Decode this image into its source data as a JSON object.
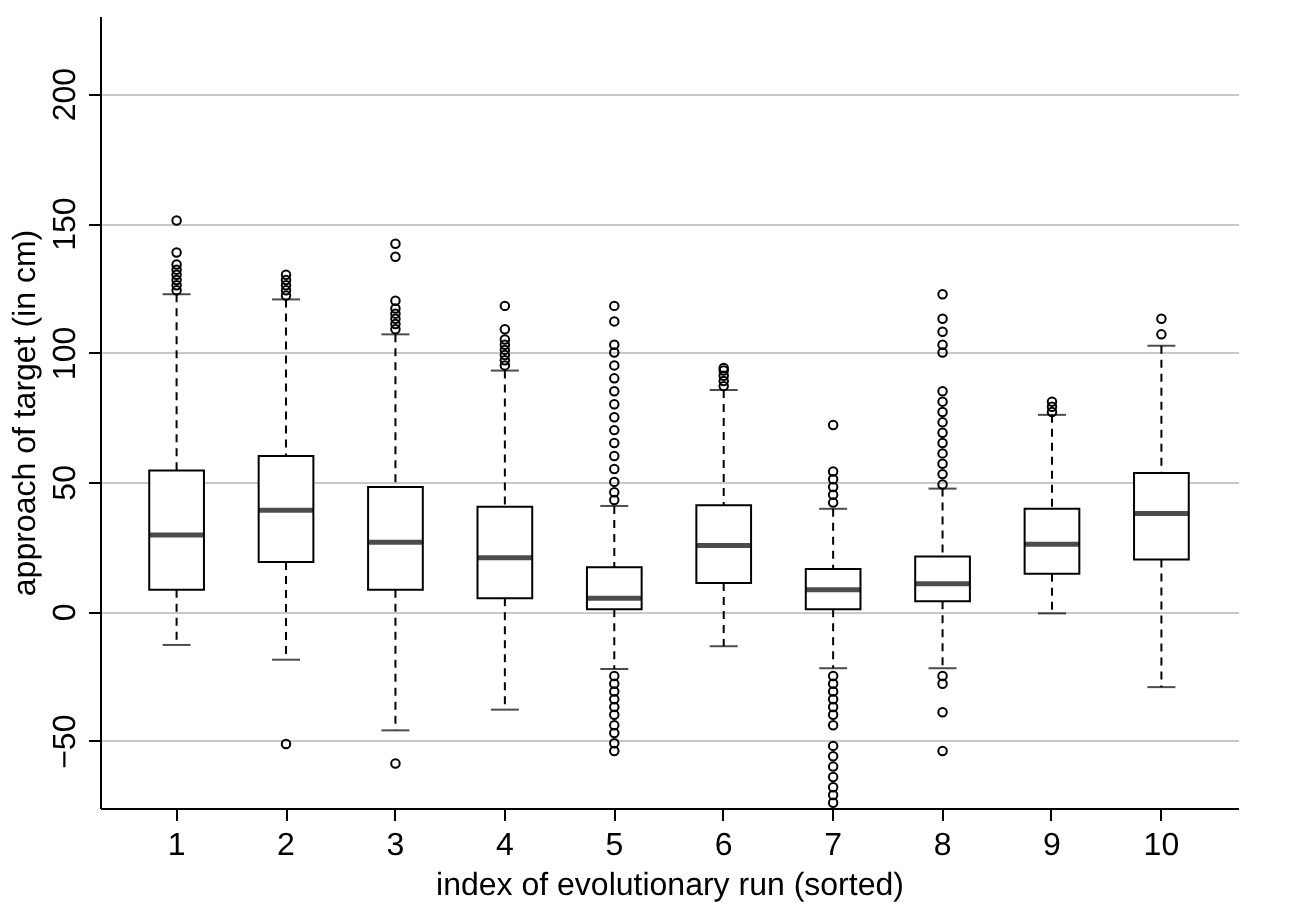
{
  "chart_data": {
    "type": "box",
    "xlabel": "index of evolutionary run (sorted)",
    "ylabel": "approach of target (in cm)",
    "categories": [
      "1",
      "2",
      "3",
      "4",
      "5",
      "6",
      "7",
      "8",
      "9",
      "10"
    ],
    "boxes": [
      {
        "low": -13,
        "q1": 8.3,
        "median": 29.5,
        "q3": 54.4,
        "high": 122.5,
        "outliers": [
          124,
          126,
          128,
          130,
          132,
          134,
          138.6,
          151
        ]
      },
      {
        "low": -18.7,
        "q1": 19,
        "median": 39,
        "q3": 60,
        "high": 120.5,
        "outliers": [
          122,
          124,
          126,
          128,
          130,
          -51.3
        ]
      },
      {
        "low": -46,
        "q1": 8.3,
        "median": 26.7,
        "q3": 48,
        "high": 107,
        "outliers": [
          109,
          111,
          113,
          115,
          117,
          120,
          137,
          142,
          -58.8
        ]
      },
      {
        "low": -38,
        "q1": 5,
        "median": 20.7,
        "q3": 40.4,
        "high": 93,
        "outliers": [
          95,
          97,
          99,
          101,
          103,
          105,
          109,
          118
        ]
      },
      {
        "low": -22.3,
        "q1": 0.8,
        "median": 5,
        "q3": 17,
        "high": 40.7,
        "outliers": [
          43,
          46,
          50,
          55,
          60,
          65,
          70,
          75,
          80,
          85,
          90,
          95,
          100,
          103,
          112,
          118,
          -25,
          -28,
          -31,
          -34,
          -37,
          -40,
          -44,
          -47,
          -51,
          -54
        ]
      },
      {
        "low": -13.5,
        "q1": 10.9,
        "median": 25.4,
        "q3": 41,
        "high": 85.5,
        "outliers": [
          87,
          89,
          91,
          93,
          94
        ]
      },
      {
        "low": -22,
        "q1": 0.8,
        "median": 8.3,
        "q3": 16.3,
        "high": 39.6,
        "outliers": [
          42,
          45,
          48,
          51,
          54,
          72,
          -25,
          -28,
          -31,
          -34,
          -37,
          -40,
          -44,
          -52,
          -56,
          -60,
          -64,
          -68,
          -71,
          -74
        ]
      },
      {
        "low": -22,
        "q1": 3.9,
        "median": 10.6,
        "q3": 21.2,
        "high": 47.4,
        "outliers": [
          49,
          53,
          57,
          61,
          65,
          69,
          73,
          77,
          81,
          85,
          100,
          103,
          108,
          113,
          122.5,
          -25,
          -28,
          -39,
          -54
        ]
      },
      {
        "low": -0.8,
        "q1": 14.5,
        "median": 25.9,
        "q3": 39.6,
        "high": 75.9,
        "outliers": [
          77,
          79,
          81
        ]
      },
      {
        "low": -29.3,
        "q1": 20,
        "median": 37.8,
        "q3": 53.4,
        "high": 102.6,
        "outliers": [
          107,
          113
        ]
      }
    ],
    "ylim": [
      -76,
      230
    ],
    "yticks": [
      -50,
      0,
      50,
      100,
      150,
      200
    ],
    "grid": "y"
  }
}
